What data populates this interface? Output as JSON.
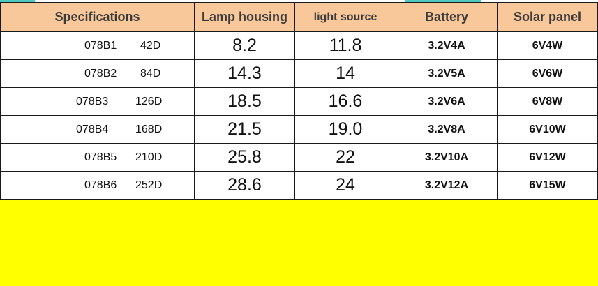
{
  "headers": {
    "specifications": "Specifications",
    "lamp_housing": "Lamp housing",
    "light_source": "light source",
    "battery": "Battery",
    "solar_panel": "Solar panel"
  },
  "rows": [
    {
      "model": "078B1",
      "degree": "42D",
      "lamp_housing": "8.2",
      "light_source": "11.8",
      "battery": "3.2V4A",
      "solar_panel": "6V4W"
    },
    {
      "model": "078B2",
      "degree": "84D",
      "lamp_housing": "14.3",
      "light_source": "14",
      "battery": "3.2V5A",
      "solar_panel": "6V6W"
    },
    {
      "model": "078B3",
      "degree": "126D",
      "lamp_housing": "18.5",
      "light_source": "16.6",
      "battery": "3.2V6A",
      "solar_panel": "6V8W"
    },
    {
      "model": "078B4",
      "degree": "168D",
      "lamp_housing": "21.5",
      "light_source": "19.0",
      "battery": "3.2V8A",
      "solar_panel": "6V10W"
    },
    {
      "model": "078B5",
      "degree": "210D",
      "lamp_housing": "25.8",
      "light_source": "22",
      "battery": "3.2V10A",
      "solar_panel": "6V12W"
    },
    {
      "model": "078B6",
      "degree": "252D",
      "lamp_housing": "28.6",
      "light_source": "24",
      "battery": "3.2V12A",
      "solar_panel": "6V15W"
    }
  ],
  "colors": {
    "header_bg": "#f9c89a",
    "bottom_panel": "#ffff00",
    "accent": "#4cc9c0"
  }
}
